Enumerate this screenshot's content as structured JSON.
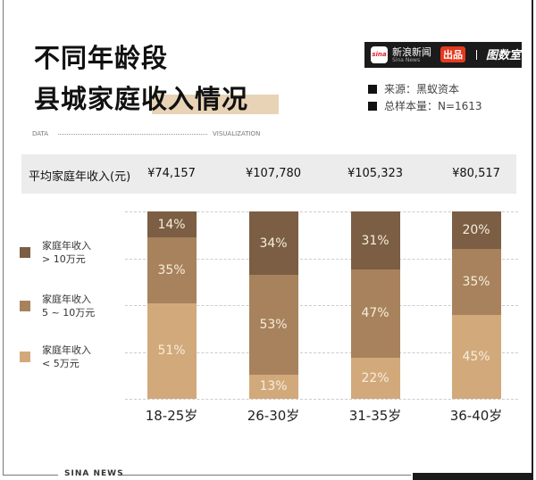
{
  "header": {
    "title_line1": "不同年龄段",
    "title_line2": "县城家庭收入情况",
    "brand": {
      "name_cn": "新浪新闻",
      "name_en": "Sina News",
      "logo_text": "sina",
      "badge": "出品",
      "partner": "图数室"
    },
    "source": "来源：黑蚁资本",
    "sample": "总样本量：N=1613",
    "data_label": "DATA",
    "viz_label": "VISUALIZATION"
  },
  "footer": {
    "text": "SINA NEWS"
  },
  "chart_data": {
    "type": "stacked-bar",
    "row_label": "平均家庭年收入(元)",
    "categories": [
      "18-25岁",
      "26-30岁",
      "31-35岁",
      "36-40岁"
    ],
    "avg_income": [
      "¥74,157",
      "¥107,780",
      "¥105,323",
      "¥80,517"
    ],
    "ylim": [
      0,
      100
    ],
    "grid": true,
    "legend_position": "left",
    "series": [
      {
        "name": "家庭年收入 < 5万元",
        "name_line1": "家庭年收入",
        "name_line2": "< 5万元",
        "color": "#d2a97b",
        "values": [
          51,
          13,
          22,
          45
        ],
        "labels": [
          "51%",
          "13%",
          "22%",
          "45%"
        ]
      },
      {
        "name": "家庭年收入 5~10万元",
        "name_line1": "家庭年收入",
        "name_line2": "5 ~ 10万元",
        "color": "#a7825c",
        "values": [
          35,
          53,
          47,
          35
        ],
        "labels": [
          "35%",
          "53%",
          "47%",
          "35%"
        ]
      },
      {
        "name": "家庭年收入 > 10万元",
        "name_line1": "家庭年收入",
        "name_line2": "> 10万元",
        "color": "#7b5e43",
        "values": [
          14,
          34,
          31,
          20
        ],
        "labels": [
          "14%",
          "34%",
          "31%",
          "20%"
        ]
      }
    ]
  }
}
